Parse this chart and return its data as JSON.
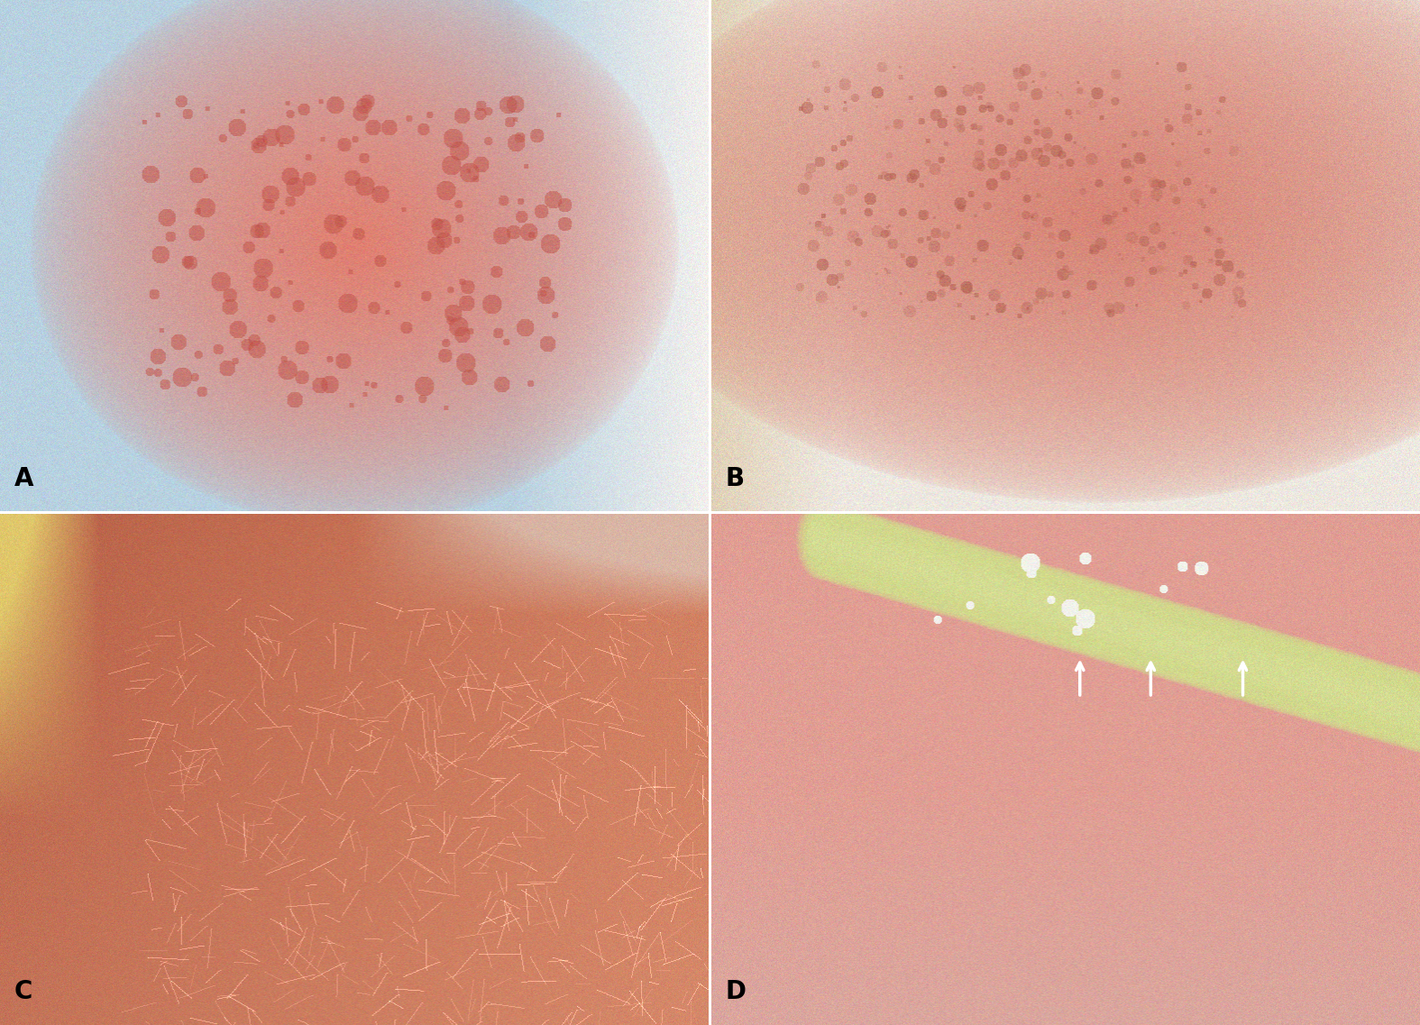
{
  "panels": [
    "A",
    "B",
    "C",
    "D"
  ],
  "label_fontsize": 20,
  "label_fontweight": "bold",
  "label_color": "black",
  "figsize": [
    15.75,
    11.37
  ],
  "dpi": 100,
  "hspace": 0.004,
  "wspace": 0.004,
  "panel_A": {
    "bg_color": [
      0.72,
      0.82,
      0.88
    ],
    "skin_color": [
      0.88,
      0.5,
      0.44
    ],
    "white_color": [
      0.95,
      0.94,
      0.93
    ],
    "rash_color": [
      0.75,
      0.32,
      0.28
    ]
  },
  "panel_B": {
    "skin_color": [
      0.84,
      0.52,
      0.46
    ],
    "bg_color": [
      0.93,
      0.91,
      0.88
    ],
    "beige_color": [
      0.88,
      0.82,
      0.72
    ],
    "rash_color": [
      0.7,
      0.38,
      0.32
    ]
  },
  "panel_C": {
    "skin_dark": [
      0.72,
      0.38,
      0.28
    ],
    "skin_mid": [
      0.82,
      0.5,
      0.38
    ],
    "skin_light": [
      0.88,
      0.62,
      0.5
    ],
    "bg_color": [
      0.85,
      0.78,
      0.62
    ],
    "yellow": [
      0.88,
      0.78,
      0.42
    ]
  },
  "panel_D": {
    "skin_color": [
      0.88,
      0.62,
      0.58
    ],
    "cord_color": [
      0.82,
      0.85,
      0.55
    ],
    "cord_highlight": [
      0.92,
      0.95,
      0.75
    ],
    "bg_dark": [
      0.72,
      0.48,
      0.44
    ],
    "white": [
      0.95,
      0.95,
      0.92
    ],
    "arrow_color": "white"
  }
}
